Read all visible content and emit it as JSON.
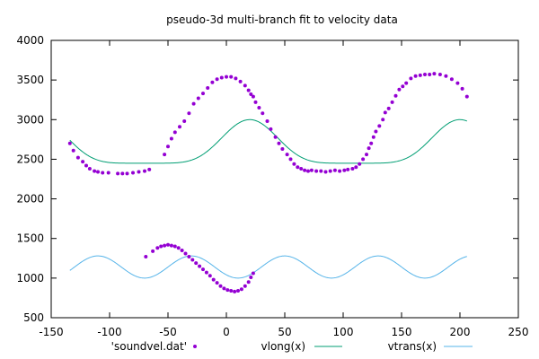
{
  "chart_data": {
    "type": "scatter",
    "title": "pseudo-3d multi-branch fit to velocity data",
    "xlim": [
      -150,
      250
    ],
    "ylim": [
      500,
      4000
    ],
    "x_ticks": [
      -150,
      -100,
      -50,
      0,
      50,
      100,
      150,
      200,
      250
    ],
    "y_ticks": [
      500,
      1000,
      1500,
      2000,
      2500,
      3000,
      3500,
      4000
    ],
    "grid": false,
    "legend_position": "bottom",
    "legend": [
      "'soundvel.dat'",
      "vlong(x)",
      "vtrans(x)"
    ],
    "series": [
      {
        "name": "'soundvel.dat'",
        "kind": "points",
        "color": "#9400d3",
        "points": [
          [
            -134,
            2700
          ],
          [
            -131,
            2610
          ],
          [
            -127,
            2520
          ],
          [
            -123,
            2470
          ],
          [
            -120,
            2420
          ],
          [
            -117,
            2380
          ],
          [
            -113,
            2350
          ],
          [
            -110,
            2340
          ],
          [
            -106,
            2330
          ],
          [
            -101,
            2330
          ],
          [
            -93,
            2320
          ],
          [
            -89,
            2320
          ],
          [
            -85,
            2320
          ],
          [
            -80,
            2330
          ],
          [
            -75,
            2340
          ],
          [
            -70,
            2350
          ],
          [
            -66,
            2370
          ],
          [
            -53,
            2560
          ],
          [
            -50,
            2660
          ],
          [
            -47,
            2760
          ],
          [
            -44,
            2840
          ],
          [
            -40,
            2910
          ],
          [
            -36,
            2980
          ],
          [
            -32,
            3080
          ],
          [
            -28,
            3200
          ],
          [
            -24,
            3270
          ],
          [
            -20,
            3330
          ],
          [
            -16,
            3400
          ],
          [
            -12,
            3470
          ],
          [
            -8,
            3510
          ],
          [
            -4,
            3530
          ],
          [
            0,
            3540
          ],
          [
            4,
            3540
          ],
          [
            8,
            3520
          ],
          [
            12,
            3480
          ],
          [
            16,
            3430
          ],
          [
            19,
            3370
          ],
          [
            21,
            3320
          ],
          [
            23,
            3290
          ],
          [
            25,
            3220
          ],
          [
            28,
            3150
          ],
          [
            31,
            3080
          ],
          [
            35,
            2980
          ],
          [
            38,
            2880
          ],
          [
            42,
            2780
          ],
          [
            45,
            2700
          ],
          [
            48,
            2630
          ],
          [
            52,
            2560
          ],
          [
            55,
            2500
          ],
          [
            58,
            2440
          ],
          [
            61,
            2400
          ],
          [
            64,
            2380
          ],
          [
            67,
            2360
          ],
          [
            70,
            2350
          ],
          [
            73,
            2360
          ],
          [
            77,
            2350
          ],
          [
            81,
            2350
          ],
          [
            85,
            2340
          ],
          [
            89,
            2350
          ],
          [
            93,
            2360
          ],
          [
            97,
            2350
          ],
          [
            101,
            2360
          ],
          [
            104,
            2370
          ],
          [
            108,
            2380
          ],
          [
            111,
            2400
          ],
          [
            114,
            2440
          ],
          [
            117,
            2500
          ],
          [
            120,
            2560
          ],
          [
            122,
            2640
          ],
          [
            124,
            2700
          ],
          [
            126,
            2780
          ],
          [
            128,
            2850
          ],
          [
            131,
            2920
          ],
          [
            134,
            3000
          ],
          [
            136,
            3090
          ],
          [
            139,
            3140
          ],
          [
            142,
            3220
          ],
          [
            145,
            3300
          ],
          [
            148,
            3380
          ],
          [
            151,
            3420
          ],
          [
            154,
            3460
          ],
          [
            158,
            3520
          ],
          [
            162,
            3550
          ],
          [
            166,
            3560
          ],
          [
            170,
            3570
          ],
          [
            174,
            3570
          ],
          [
            178,
            3580
          ],
          [
            183,
            3570
          ],
          [
            188,
            3550
          ],
          [
            193,
            3510
          ],
          [
            198,
            3460
          ],
          [
            202,
            3390
          ],
          [
            206,
            3290
          ],
          [
            -69,
            1270
          ],
          [
            -63,
            1340
          ],
          [
            -59,
            1380
          ],
          [
            -56,
            1400
          ],
          [
            -53,
            1410
          ],
          [
            -50,
            1420
          ],
          [
            -47,
            1410
          ],
          [
            -44,
            1400
          ],
          [
            -41,
            1380
          ],
          [
            -38,
            1350
          ],
          [
            -35,
            1310
          ],
          [
            -32,
            1270
          ],
          [
            -29,
            1230
          ],
          [
            -26,
            1190
          ],
          [
            -23,
            1150
          ],
          [
            -20,
            1110
          ],
          [
            -17,
            1070
          ],
          [
            -14,
            1030
          ],
          [
            -11,
            980
          ],
          [
            -8,
            940
          ],
          [
            -5,
            900
          ],
          [
            -2,
            870
          ],
          [
            1,
            850
          ],
          [
            4,
            840
          ],
          [
            7,
            830
          ],
          [
            10,
            840
          ],
          [
            13,
            860
          ],
          [
            16,
            900
          ],
          [
            19,
            950
          ],
          [
            21,
            1010
          ],
          [
            23,
            1060
          ]
        ]
      },
      {
        "name": "vlong(x)",
        "kind": "curve",
        "color": "#009e73",
        "params": {
          "xmin": -134,
          "xmax": 206,
          "period": 180,
          "x_peak": 20,
          "high": 3000,
          "low": 2450,
          "flat_shape": 3
        }
      },
      {
        "name": "vtrans(x)",
        "kind": "curve",
        "color": "#56b4e9",
        "params": {
          "xmin": -134,
          "xmax": 206,
          "period": 80,
          "x_peak": -110,
          "high": 1280,
          "low": 1000,
          "flat_shape": 1
        }
      }
    ]
  }
}
